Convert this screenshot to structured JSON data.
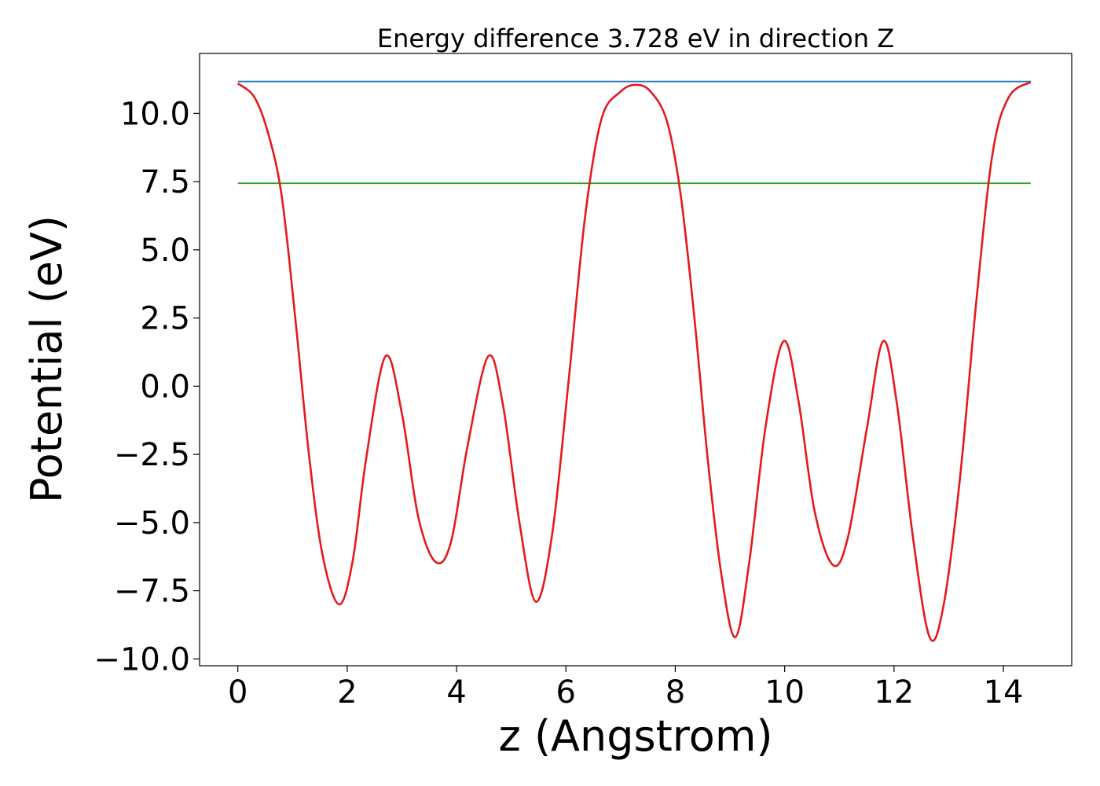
{
  "chart_data": {
    "type": "line",
    "title": "Energy difference 3.728 eV in direction Z",
    "xlabel": "z (Angstrom)",
    "ylabel": "Potential (eV)",
    "xlim": [
      -0.7,
      15.25
    ],
    "ylim": [
      -10.25,
      12.2
    ],
    "xticks": [
      0,
      2,
      4,
      6,
      8,
      10,
      12,
      14
    ],
    "xtick_labels": [
      "0",
      "2",
      "4",
      "6",
      "8",
      "10",
      "12",
      "14"
    ],
    "yticks": [
      -10.0,
      -7.5,
      -5.0,
      -2.5,
      0.0,
      2.5,
      5.0,
      7.5,
      10.0
    ],
    "ytick_labels": [
      "−10.0",
      "−7.5",
      "−5.0",
      "−2.5",
      "0.0",
      "2.5",
      "5.0",
      "7.5",
      "10.0"
    ],
    "grid": false,
    "series": [
      {
        "color": "#1f77b4",
        "x": [
          0,
          14.5
        ],
        "y": [
          11.17,
          11.17
        ]
      },
      {
        "color": "#2ca02c",
        "x": [
          0,
          14.5
        ],
        "y": [
          7.44,
          7.44
        ]
      },
      {
        "color": "#e41a1c",
        "x": [
          0.0,
          0.3,
          0.55,
          0.8,
          1.05,
          1.3,
          1.55,
          1.85,
          2.1,
          2.35,
          2.7,
          3.0,
          3.3,
          3.62,
          3.9,
          4.2,
          4.58,
          4.85,
          5.15,
          5.45,
          5.75,
          6.05,
          6.35,
          6.65,
          7.0,
          7.28,
          7.55,
          7.85,
          8.1,
          8.35,
          8.6,
          8.85,
          9.1,
          9.35,
          9.65,
          9.98,
          10.25,
          10.55,
          10.88,
          11.15,
          11.5,
          11.8,
          12.05,
          12.35,
          12.65,
          12.9,
          13.2,
          13.5,
          13.8,
          14.1,
          14.5
        ],
        "y": [
          11.1,
          10.6,
          9.3,
          7.0,
          2.5,
          -2.5,
          -6.2,
          -8.0,
          -6.4,
          -2.6,
          1.1,
          -1.0,
          -4.8,
          -6.45,
          -5.7,
          -2.2,
          1.1,
          -0.7,
          -5.0,
          -7.9,
          -5.4,
          0.2,
          6.2,
          9.8,
          10.8,
          11.05,
          10.8,
          9.7,
          7.0,
          2.5,
          -2.8,
          -7.0,
          -9.2,
          -6.5,
          -1.5,
          1.65,
          -0.5,
          -4.6,
          -6.55,
          -5.6,
          -1.6,
          1.65,
          -0.6,
          -5.6,
          -9.2,
          -8.1,
          -3.5,
          3.0,
          8.5,
          10.6,
          11.15
        ]
      }
    ]
  }
}
